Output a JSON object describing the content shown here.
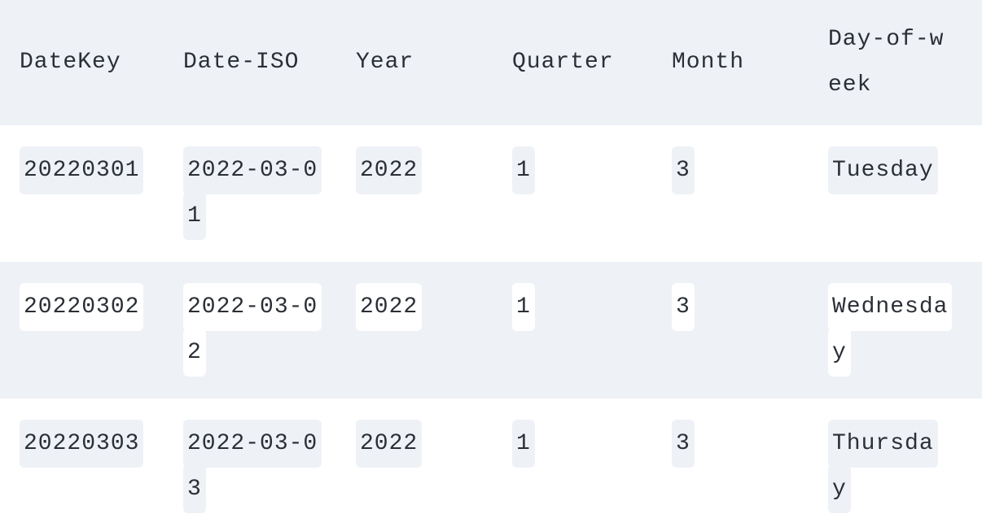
{
  "table": {
    "columns": [
      "DateKey",
      "Date-ISO",
      "Year",
      "Quarter",
      "Month",
      "Day-of-week"
    ],
    "rows": [
      [
        "20220301",
        "2022-03-01",
        "2022",
        "1",
        "3",
        "Tuesday"
      ],
      [
        "20220302",
        "2022-03-02",
        "2022",
        "1",
        "3",
        "Wednesday"
      ],
      [
        "20220303",
        "2022-03-03",
        "2022",
        "1",
        "3",
        "Thursday"
      ]
    ]
  },
  "colors": {
    "header_background": "#eef1f6",
    "stripe_background": "#eef1f6",
    "text": "#2b2f36"
  }
}
